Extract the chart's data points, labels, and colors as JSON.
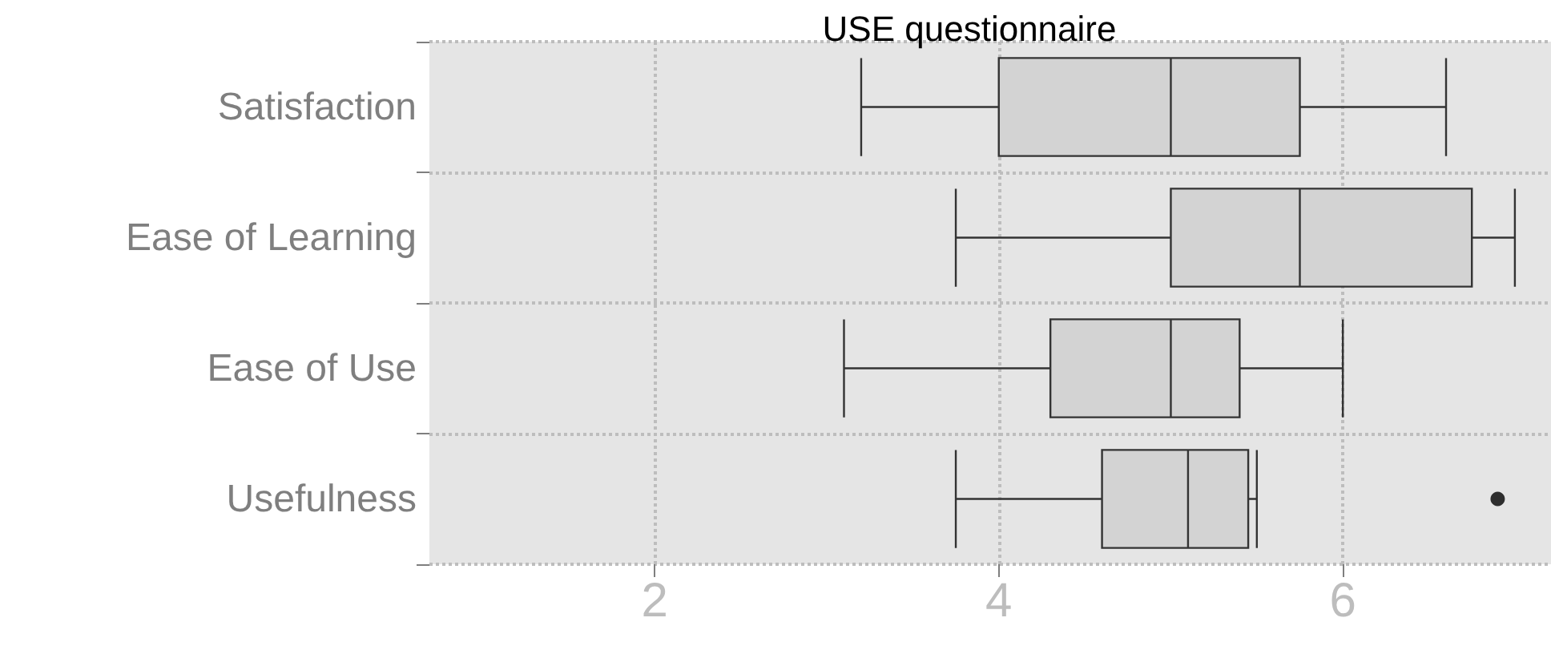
{
  "chart_data": {
    "type": "box",
    "title": "USE questionnaire",
    "orientation": "horizontal",
    "categories": [
      "Satisfaction",
      "Ease of Learning",
      "Ease of Use",
      "Usefulness"
    ],
    "boxes": [
      {
        "low": 3.2,
        "q1": 4,
        "median": 5,
        "q3": 5.75,
        "high": 6.6
      },
      {
        "low": 3.75,
        "q1": 5,
        "median": 5.75,
        "q3": 6.75,
        "high": 7
      },
      {
        "low": 3.1,
        "q1": 4.3,
        "median": 5,
        "q3": 5.4,
        "high": 6
      },
      {
        "low": 3.75,
        "q1": 4.6,
        "median": 5.1,
        "q3": 5.45,
        "high": 5.5,
        "outliers": [
          6.9
        ]
      }
    ],
    "color": "#d3d3d3",
    "xlim": [
      0.69,
      7.21
    ],
    "xticks": [
      2,
      4,
      6
    ],
    "grid": true,
    "line_style": "dotted"
  }
}
